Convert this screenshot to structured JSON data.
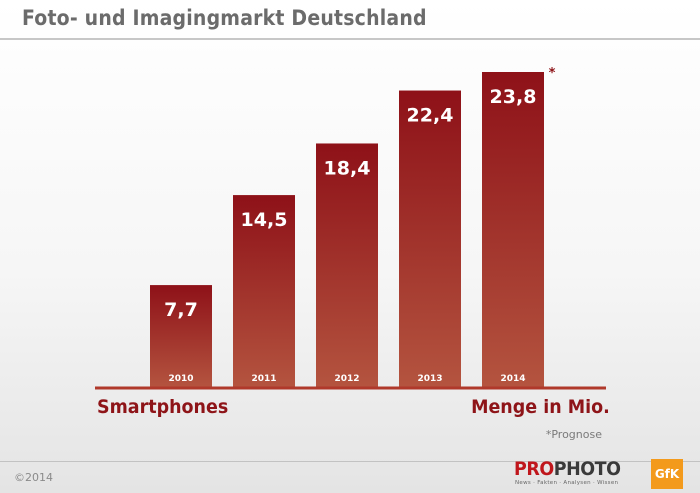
{
  "title": "Foto- und Imagingmarkt Deutschland",
  "chart_data": {
    "type": "bar",
    "categories": [
      "2010",
      "2011",
      "2012",
      "2013",
      "2014"
    ],
    "values": [
      7.7,
      14.5,
      18.4,
      22.4,
      23.8
    ],
    "value_labels": [
      "7,7",
      "14,5",
      "18,4",
      "22,4",
      "23,8"
    ],
    "forecast_marker": "*",
    "title": "Foto- und Imagingmarkt Deutschland",
    "xlabel": "Smartphones",
    "ylabel": "Menge in Mio.",
    "ylim": [
      0,
      23.8
    ],
    "grid": false,
    "legend": "none"
  },
  "labels": {
    "left": "Smartphones",
    "right": "Menge in Mio."
  },
  "note": "*Prognose",
  "footer": {
    "copyright": "©2014",
    "brand_pro": "PRO",
    "brand_photo": "PHOTO",
    "brand_tagline": "News · Fakten · Analysen · Wissen",
    "partner_logo": "GfK"
  },
  "colors": {
    "bar_top": "#8e1118",
    "bar_bottom": "#b4543f",
    "axis": "#b0392b",
    "accent": "#8e1418",
    "value_text": "#ffffff"
  }
}
